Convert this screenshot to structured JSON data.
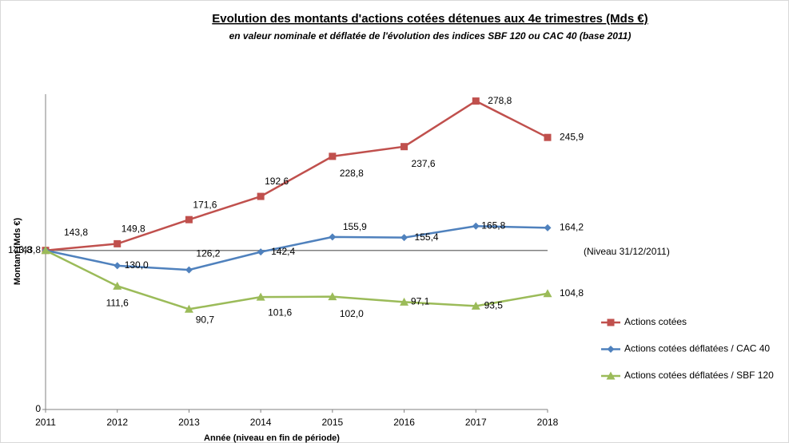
{
  "chart_data": {
    "type": "line",
    "title": "Evolution des montants d'actions cotées détenues aux 4e trimestres (Mds €)",
    "subtitle": "en valeur nominale et déflatée de l'évolution des indices SBF 120 ou CAC 40 (base 2011)",
    "x_label": "Année (niveau en fin de période)",
    "y_label": "Montant (Mds €)",
    "categories": [
      "2011",
      "2012",
      "2013",
      "2014",
      "2015",
      "2016",
      "2017",
      "2018"
    ],
    "ylim": [
      0,
      285
    ],
    "yticks": [
      0,
      {
        "value": 143.8,
        "label": "143,8"
      }
    ],
    "reference_line": {
      "value": 143.8,
      "label": "(Niveau 31/12/2011)",
      "color": "#808080"
    },
    "legend": "right",
    "series": [
      {
        "name": "Actions cotées",
        "color": "#c0504d",
        "marker": "square",
        "values": [
          143.8,
          149.8,
          171.6,
          192.6,
          228.8,
          237.6,
          278.8,
          245.9
        ],
        "value_labels": [
          "143,8",
          "149,8",
          "171,6",
          "192,6",
          "228,8",
          "237,6",
          "278,8",
          "245,9"
        ]
      },
      {
        "name": "Actions cotées déflatées / CAC 40",
        "color": "#4f81bd",
        "marker": "diamond",
        "values": [
          143.8,
          130.0,
          126.2,
          142.4,
          155.9,
          155.4,
          165.8,
          164.2
        ],
        "value_labels": [
          "143,8",
          "130,0",
          "126,2",
          "142,4",
          "155,9",
          "155,4",
          "165,8",
          "164,2"
        ]
      },
      {
        "name": "Actions cotées déflatées / SBF 120",
        "color": "#9bbb59",
        "marker": "triangle",
        "values": [
          143.8,
          111.6,
          90.7,
          101.6,
          102.0,
          97.1,
          93.5,
          104.8
        ],
        "value_labels": [
          null,
          "111,6",
          "90,7",
          "101,6",
          "102,0",
          "97,1",
          "93,5",
          "104,8"
        ]
      }
    ]
  }
}
